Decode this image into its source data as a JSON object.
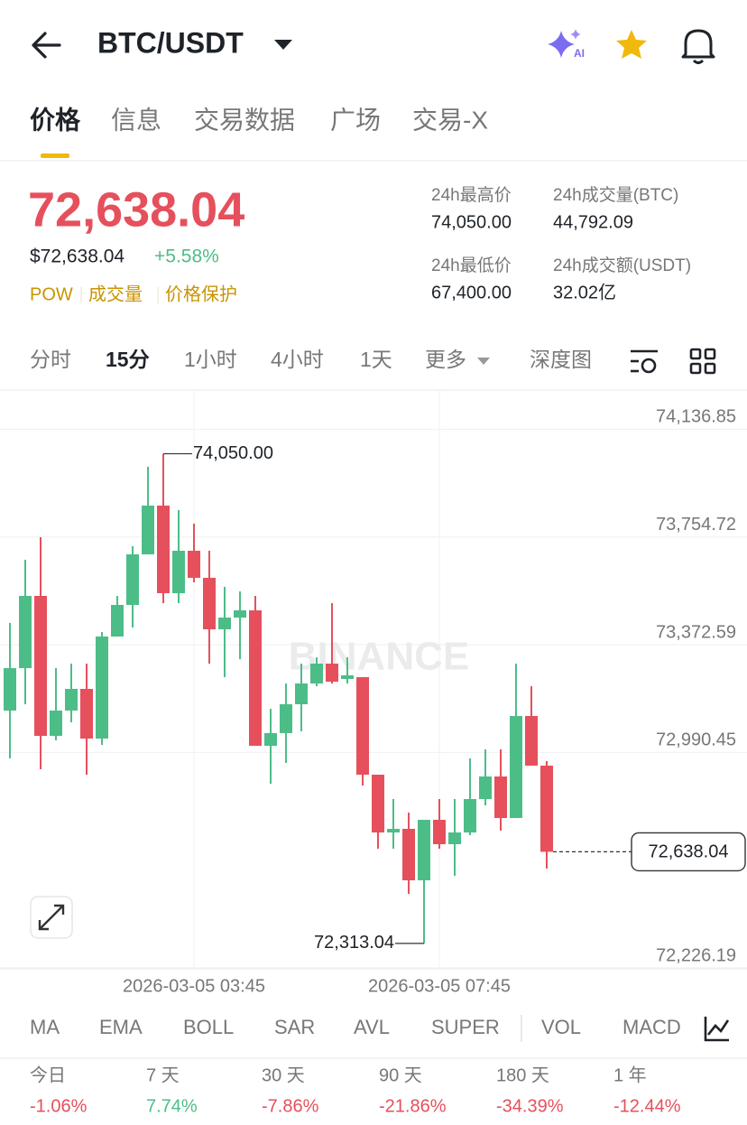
{
  "header": {
    "title": "BTC/USDT",
    "ai_badge": "AI"
  },
  "tabs": [
    "价格",
    "信息",
    "交易数据",
    "广场",
    "交易-X"
  ],
  "ticker": {
    "price": "72,638.04",
    "usd_price": "$72,638.04",
    "change": "+5.58%",
    "tags": [
      "POW",
      "成交量",
      "价格保护"
    ]
  },
  "stats": [
    {
      "label": "24h最高价",
      "value": "74,050.00"
    },
    {
      "label": "24h成交量(BTC)",
      "value": "44,792.09"
    },
    {
      "label": "24h最低价",
      "value": "67,400.00"
    },
    {
      "label": "24h成交额(USDT)",
      "value": "32.02亿"
    }
  ],
  "intervals": [
    "分时",
    "15分",
    "1小时",
    "4小时",
    "1天",
    "更多",
    "深度图"
  ],
  "chart_data": {
    "type": "candlestick",
    "categories": [
      null,
      null,
      null,
      null,
      null,
      null,
      null,
      null,
      null,
      null,
      null,
      null,
      "2026-03-05 03:45",
      null,
      null,
      null,
      null,
      null,
      null,
      null,
      null,
      null,
      null,
      null,
      null,
      null,
      null,
      null,
      "2026-03-05 07:45",
      null,
      null,
      null,
      null,
      null,
      null,
      null
    ],
    "open": [
      73139.0,
      73289.6,
      73545.8,
      73049.3,
      73139.0,
      73215.9,
      73039.7,
      73401.7,
      73513.8,
      73693.1,
      73866.1,
      73555.4,
      73705.9,
      73609.9,
      73427.3,
      73468.9,
      73494.6,
      73014.1,
      73059.0,
      73161.4,
      73235.1,
      73305.6,
      73251.1,
      73257.5,
      72911.6,
      72706.6,
      72719.4,
      72536.9,
      72751.5,
      72665.0,
      72706.6,
      72825.1,
      72905.2,
      72757.9,
      73119.8,
      72943.7
    ],
    "high": [
      73449.7,
      73673.9,
      73754.0,
      73289.6,
      73305.6,
      73305.6,
      73417.7,
      73545.8,
      73722.0,
      74003.8,
      74050,
      73850.1,
      73802.0,
      73705.9,
      73577.8,
      73561.8,
      73545.8,
      73145.4,
      73235.1,
      73305.6,
      73328.0,
      73520.2,
      73328.0,
      73257.5,
      72911.6,
      72825.1,
      72777.1,
      72751.5,
      72825.1,
      72825.1,
      72969.3,
      73001.3,
      73001.3,
      73305.6,
      73225.5,
      72959.7
    ],
    "low": [
      72969.3,
      73161.4,
      72930.8,
      73033.3,
      73097.4,
      72911.6,
      73017.3,
      73401.7,
      73433.7,
      73693.1,
      73520.2,
      73520.2,
      73593.8,
      73305.6,
      73257.5,
      73321.6,
      73014.1,
      72879.6,
      72953.3,
      73065.4,
      73225.5,
      73235.1,
      73235.1,
      72873.2,
      72649.0,
      72649.0,
      72488.8,
      72313.04,
      72649.0,
      72552.9,
      72697.0,
      72802.7,
      72713.0,
      72757.9,
      72943.7,
      72578.5
    ],
    "close": [
      73289.6,
      73545.8,
      73049.3,
      73139.0,
      73215.9,
      73039.7,
      73401.7,
      73513.8,
      73693.1,
      73866.1,
      73555.4,
      73705.9,
      73609.9,
      73427.3,
      73468.9,
      73494.6,
      73014.1,
      73059.0,
      73161.4,
      73235.1,
      73305.6,
      73241.5,
      73263.9,
      72911.6,
      72706.6,
      72719.4,
      72536.9,
      72751.5,
      72665.0,
      72706.6,
      72825.1,
      72905.2,
      72757.9,
      73119.8,
      72943.7,
      72638.04
    ],
    "ylim": [
      72226.19,
      74276
    ],
    "yticks": [
      {
        "value": 74136.85,
        "label": "74,136.85"
      },
      {
        "value": 73754.72,
        "label": "73,754.72"
      },
      {
        "value": 73372.59,
        "label": "73,372.59"
      },
      {
        "value": 72990.45,
        "label": "72,990.45"
      },
      {
        "value": 72226.19,
        "label": "72,226.19"
      }
    ],
    "grid": true,
    "up_color": "#4dbd88",
    "down_color": "#e5505c",
    "high_label": "74,050.00",
    "low_label": "72,313.04",
    "last_label": "72,638.04",
    "watermark": "BINANCE"
  },
  "indicators": [
    "MA",
    "EMA",
    "BOLL",
    "SAR",
    "AVL",
    "SUPER",
    "VOL",
    "MACD"
  ],
  "performance": [
    {
      "label": "今日",
      "value": "-1.06%"
    },
    {
      "label": "7 天",
      "value": "7.74%"
    },
    {
      "label": "30 天",
      "value": "-7.86%"
    },
    {
      "label": "90 天",
      "value": "-21.86%"
    },
    {
      "label": "180 天",
      "value": "-34.39%"
    },
    {
      "label": "1 年",
      "value": "-12.44%"
    }
  ]
}
